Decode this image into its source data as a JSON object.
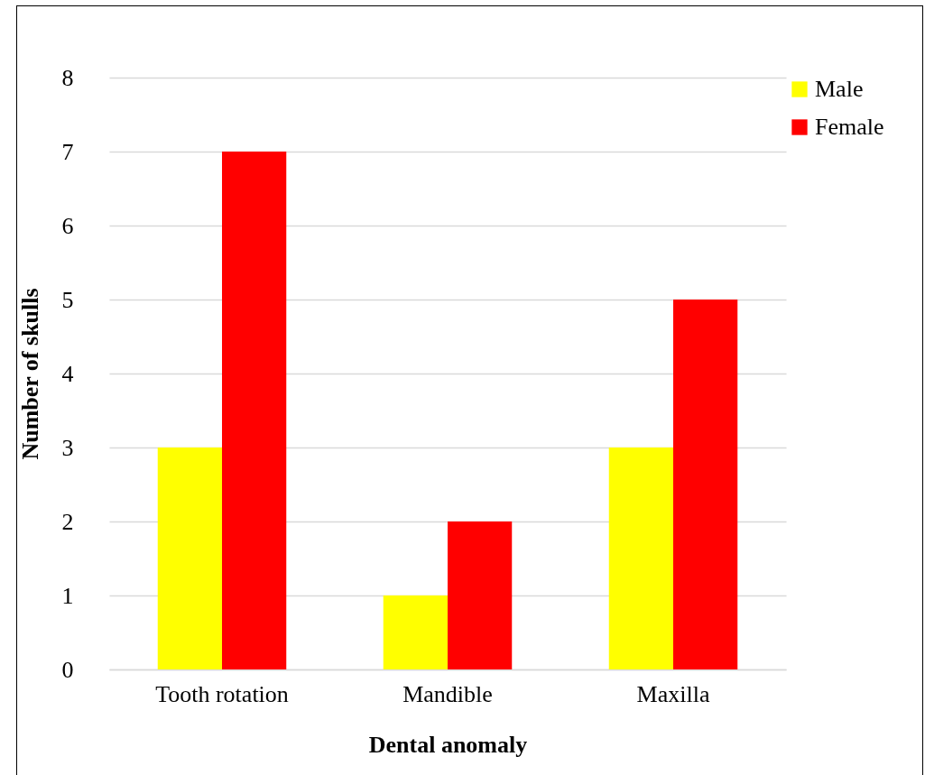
{
  "chart_data": {
    "type": "bar",
    "xlabel": "Dental anomaly",
    "ylabel": "Number of skulls",
    "categories": [
      "Tooth rotation",
      "Mandible",
      "Maxilla"
    ],
    "series": [
      {
        "name": "Male",
        "color": "#ffff00",
        "values": [
          3,
          1,
          3
        ]
      },
      {
        "name": "Female",
        "color": "#ff0000",
        "values": [
          7,
          2,
          5
        ]
      }
    ],
    "ylim": [
      0,
      8
    ],
    "yticks": [
      0,
      1,
      2,
      3,
      4,
      5,
      6,
      7,
      8
    ],
    "grid": "y",
    "legend": "right"
  }
}
